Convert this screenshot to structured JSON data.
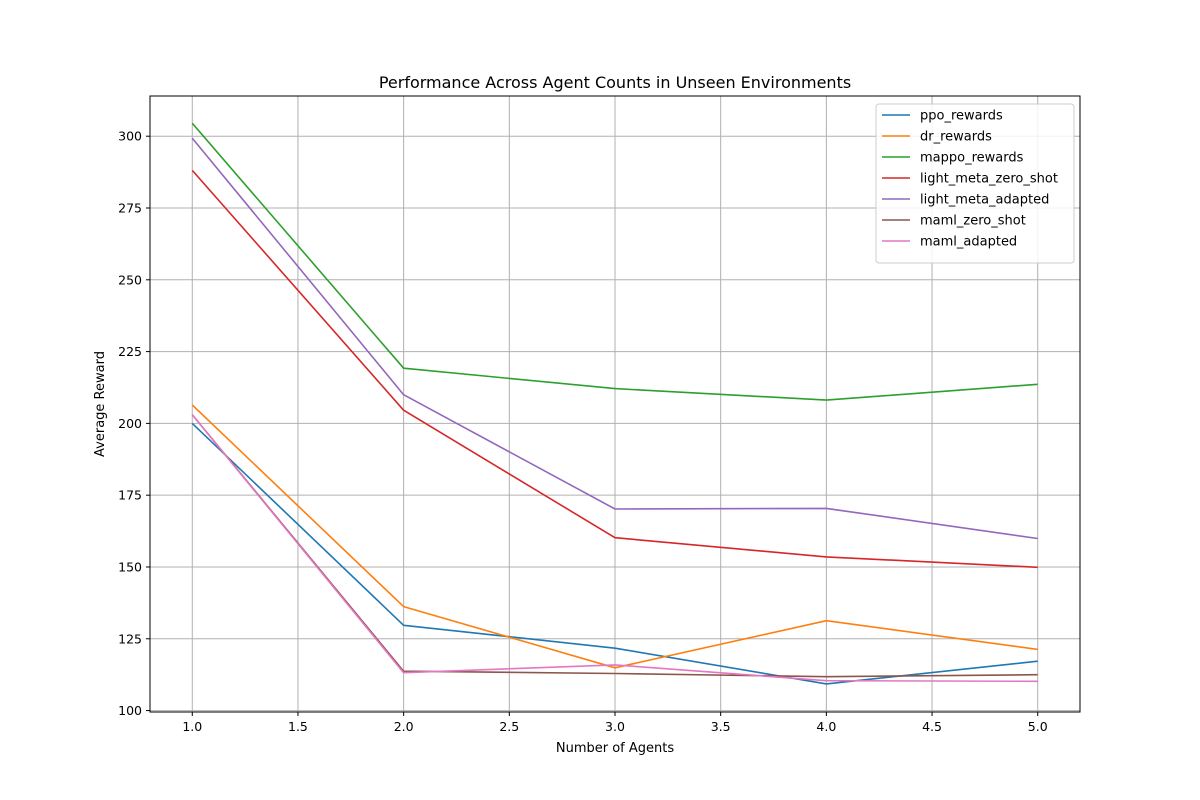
{
  "chart_data": {
    "type": "line",
    "title": "Performance Across Agent Counts in Unseen Environments",
    "xlabel": "Number of Agents",
    "ylabel": "Average Reward",
    "xlim": [
      0.8,
      5.2
    ],
    "ylim": [
      99.5,
      314
    ],
    "xticks": [
      "1.0",
      "1.5",
      "2.0",
      "2.5",
      "3.0",
      "3.5",
      "4.0",
      "4.5",
      "5.0"
    ],
    "yticks": [
      "100",
      "125",
      "150",
      "175",
      "200",
      "225",
      "250",
      "275",
      "300"
    ],
    "grid": true,
    "legend_position": "top-right",
    "x": [
      1,
      2,
      3,
      4,
      5
    ],
    "series": [
      {
        "name": "ppo_rewards",
        "color": "#1f77b4",
        "values": [
          200.0,
          129.7,
          121.7,
          109.3,
          117.2
        ]
      },
      {
        "name": "dr_rewards",
        "color": "#ff7f0e",
        "values": [
          206.4,
          136.2,
          114.9,
          131.3,
          121.3
        ]
      },
      {
        "name": "mappo_rewards",
        "color": "#2ca02c",
        "values": [
          304.5,
          219.2,
          212.1,
          208.1,
          213.6
        ]
      },
      {
        "name": "light_meta_zero_shot",
        "color": "#d62728",
        "values": [
          288.1,
          204.6,
          160.2,
          153.5,
          149.9
        ]
      },
      {
        "name": "light_meta_adapted",
        "color": "#9467bd",
        "values": [
          299.3,
          210.0,
          170.2,
          170.4,
          159.9
        ]
      },
      {
        "name": "maml_zero_shot",
        "color": "#8c564b",
        "values": [
          203.0,
          113.7,
          112.9,
          111.8,
          112.5
        ]
      },
      {
        "name": "maml_adapted",
        "color": "#e377c2",
        "values": [
          203.0,
          113.2,
          115.9,
          110.4,
          110.2
        ]
      }
    ]
  }
}
